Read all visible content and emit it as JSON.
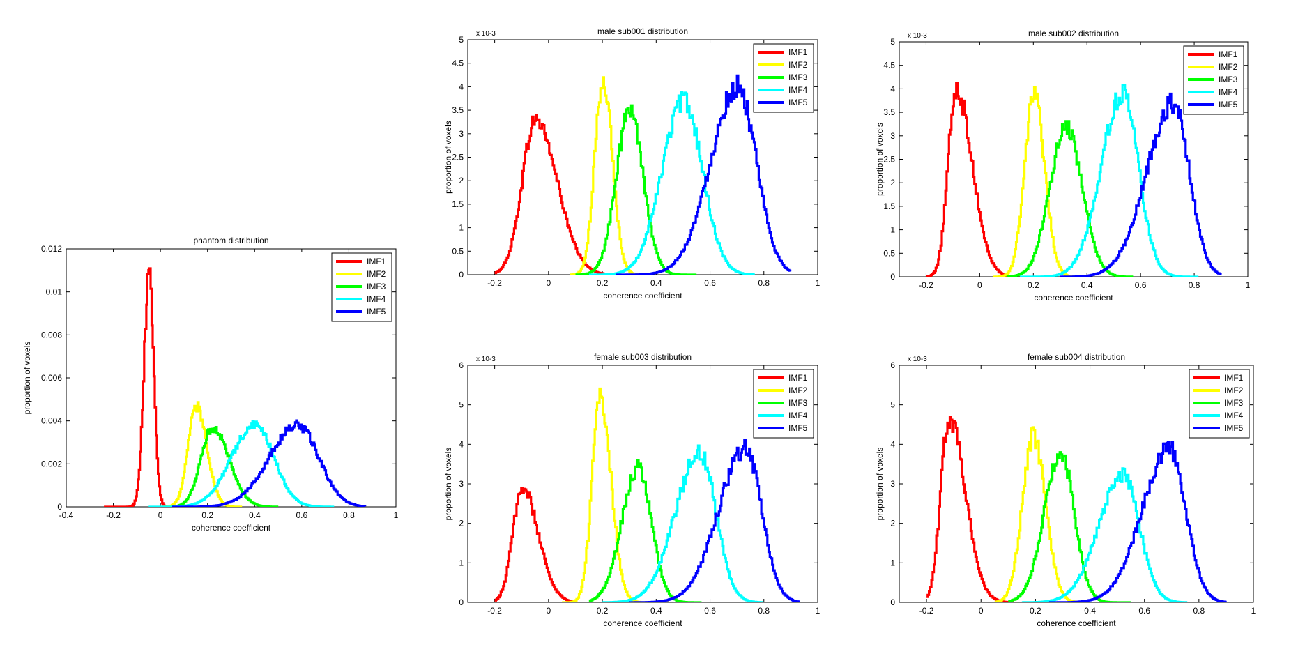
{
  "chart_data": [
    {
      "type": "line",
      "title": "phantom distribution",
      "xlabel": "coherence coefficient",
      "ylabel": "proportion of voxels",
      "xlim": [
        -0.4,
        1
      ],
      "ylim": [
        0,
        0.012
      ],
      "xticks": [
        "-0.4",
        "-0.2",
        "0",
        "0.2",
        "0.4",
        "0.6",
        "0.8",
        "1"
      ],
      "yticks": [
        "0",
        "0.002",
        "0.004",
        "0.006",
        "0.008",
        "0.01",
        "0.012"
      ],
      "exponent_label": "",
      "legend_position": "top-right",
      "series": [
        {
          "name": "IMF1",
          "color": "#ff0000",
          "peak_x": -0.05,
          "peak_y": 0.0107,
          "sigma_left": 0.022,
          "sigma_right": 0.02,
          "x_min": -0.24,
          "x_max": 0.1
        },
        {
          "name": "IMF2",
          "color": "#ffff00",
          "peak_x": 0.15,
          "peak_y": 0.0047,
          "sigma_left": 0.035,
          "sigma_right": 0.045,
          "x_min": 0.0,
          "x_max": 0.35
        },
        {
          "name": "IMF3",
          "color": "#00ff00",
          "peak_x": 0.22,
          "peak_y": 0.0037,
          "sigma_left": 0.05,
          "sigma_right": 0.07,
          "x_min": 0.05,
          "x_max": 0.5
        },
        {
          "name": "IMF4",
          "color": "#00ffff",
          "peak_x": 0.4,
          "peak_y": 0.0038,
          "sigma_left": 0.1,
          "sigma_right": 0.08,
          "x_min": -0.05,
          "x_max": 0.74
        },
        {
          "name": "IMF5",
          "color": "#0000ff",
          "peak_x": 0.58,
          "peak_y": 0.0038,
          "sigma_left": 0.12,
          "sigma_right": 0.09,
          "x_min": 0.05,
          "x_max": 0.87
        }
      ]
    },
    {
      "type": "line",
      "title": "male sub001 distribution",
      "xlabel": "coherence coefficient",
      "ylabel": "proportion of voxels",
      "xlim": [
        -0.3,
        1
      ],
      "ylim": [
        0,
        5
      ],
      "xticks": [
        "-0.2",
        "0",
        "0.2",
        "0.4",
        "0.6",
        "0.8",
        "1"
      ],
      "yticks": [
        "0",
        "0.5",
        "1",
        "1.5",
        "2",
        "2.5",
        "3",
        "3.5",
        "4",
        "4.5",
        "5"
      ],
      "exponent_label": "x 10-3",
      "legend_position": "top-right",
      "series": [
        {
          "name": "IMF1",
          "color": "#ff0000",
          "peak_x": -0.05,
          "peak_y": 3.3,
          "sigma_left": 0.05,
          "sigma_right": 0.08,
          "x_min": -0.2,
          "x_max": 0.25
        },
        {
          "name": "IMF2",
          "color": "#ffff00",
          "peak_x": 0.2,
          "peak_y": 4.2,
          "sigma_left": 0.03,
          "sigma_right": 0.035,
          "x_min": 0.08,
          "x_max": 0.38
        },
        {
          "name": "IMF3",
          "color": "#00ff00",
          "peak_x": 0.3,
          "peak_y": 3.5,
          "sigma_left": 0.05,
          "sigma_right": 0.05,
          "x_min": 0.1,
          "x_max": 0.55
        },
        {
          "name": "IMF4",
          "color": "#00ffff",
          "peak_x": 0.5,
          "peak_y": 3.7,
          "sigma_left": 0.08,
          "sigma_right": 0.07,
          "x_min": 0.15,
          "x_max": 0.77
        },
        {
          "name": "IMF5",
          "color": "#0000ff",
          "peak_x": 0.7,
          "peak_y": 4.0,
          "sigma_left": 0.1,
          "sigma_right": 0.07,
          "x_min": 0.25,
          "x_max": 0.9
        }
      ]
    },
    {
      "type": "line",
      "title": "male sub002 distribution",
      "xlabel": "coherence coefficient",
      "ylabel": "proportion of voxels",
      "xlim": [
        -0.3,
        1
      ],
      "ylim": [
        0,
        5
      ],
      "xticks": [
        "-0.2",
        "0",
        "0.2",
        "0.4",
        "0.6",
        "0.8",
        "1"
      ],
      "yticks": [
        "0",
        "0.5",
        "1",
        "1.5",
        "2",
        "2.5",
        "3",
        "3.5",
        "4",
        "4.5",
        "5"
      ],
      "exponent_label": "x 10-3",
      "legend_position": "top-right",
      "series": [
        {
          "name": "IMF1",
          "color": "#ff0000",
          "peak_x": -0.09,
          "peak_y": 4.0,
          "sigma_left": 0.03,
          "sigma_right": 0.06,
          "x_min": -0.2,
          "x_max": 0.12
        },
        {
          "name": "IMF2",
          "color": "#ffff00",
          "peak_x": 0.2,
          "peak_y": 3.9,
          "sigma_left": 0.035,
          "sigma_right": 0.04,
          "x_min": 0.05,
          "x_max": 0.4
        },
        {
          "name": "IMF3",
          "color": "#00ff00",
          "peak_x": 0.32,
          "peak_y": 3.2,
          "sigma_left": 0.06,
          "sigma_right": 0.06,
          "x_min": 0.1,
          "x_max": 0.57
        },
        {
          "name": "IMF4",
          "color": "#00ffff",
          "peak_x": 0.53,
          "peak_y": 3.9,
          "sigma_left": 0.08,
          "sigma_right": 0.06,
          "x_min": 0.15,
          "x_max": 0.82
        },
        {
          "name": "IMF5",
          "color": "#0000ff",
          "peak_x": 0.72,
          "peak_y": 3.7,
          "sigma_left": 0.1,
          "sigma_right": 0.06,
          "x_min": 0.3,
          "x_max": 0.9
        }
      ]
    },
    {
      "type": "line",
      "title": "female sub003 distribution",
      "xlabel": "coherence coefficient",
      "ylabel": "proportion of voxels",
      "xlim": [
        -0.3,
        1
      ],
      "ylim": [
        0,
        6
      ],
      "xticks": [
        "-0.2",
        "0",
        "0.2",
        "0.4",
        "0.6",
        "0.8",
        "1"
      ],
      "yticks": [
        "0",
        "1",
        "2",
        "3",
        "4",
        "5",
        "6"
      ],
      "exponent_label": "x 10-3",
      "legend_position": "top-right",
      "series": [
        {
          "name": "IMF1",
          "color": "#ff0000",
          "peak_x": -0.1,
          "peak_y": 2.9,
          "sigma_left": 0.035,
          "sigma_right": 0.06,
          "x_min": -0.2,
          "x_max": 0.1
        },
        {
          "name": "IMF2",
          "color": "#ffff00",
          "peak_x": 0.19,
          "peak_y": 5.2,
          "sigma_left": 0.03,
          "sigma_right": 0.04,
          "x_min": 0.05,
          "x_max": 0.45
        },
        {
          "name": "IMF3",
          "color": "#00ff00",
          "peak_x": 0.33,
          "peak_y": 3.4,
          "sigma_left": 0.06,
          "sigma_right": 0.05,
          "x_min": 0.15,
          "x_max": 0.57
        },
        {
          "name": "IMF4",
          "color": "#00ffff",
          "peak_x": 0.56,
          "peak_y": 3.8,
          "sigma_left": 0.09,
          "sigma_right": 0.06,
          "x_min": 0.2,
          "x_max": 0.8
        },
        {
          "name": "IMF5",
          "color": "#0000ff",
          "peak_x": 0.73,
          "peak_y": 3.9,
          "sigma_left": 0.1,
          "sigma_right": 0.06,
          "x_min": 0.3,
          "x_max": 0.93
        }
      ]
    },
    {
      "type": "line",
      "title": "female sub004 distribution",
      "xlabel": "coherence coefficient",
      "ylabel": "proportion of voxels",
      "xlim": [
        -0.3,
        1
      ],
      "ylim": [
        0,
        6
      ],
      "xticks": [
        "-0.2",
        "0",
        "0.2",
        "0.4",
        "0.6",
        "0.8",
        "1"
      ],
      "yticks": [
        "0",
        "1",
        "2",
        "3",
        "4",
        "5",
        "6"
      ],
      "exponent_label": "x 10-3",
      "legend_position": "top-right",
      "series": [
        {
          "name": "IMF1",
          "color": "#ff0000",
          "peak_x": -0.12,
          "peak_y": 4.7,
          "sigma_left": 0.03,
          "sigma_right": 0.06,
          "x_min": -0.2,
          "x_max": 0.12
        },
        {
          "name": "IMF2",
          "color": "#ffff00",
          "peak_x": 0.19,
          "peak_y": 4.2,
          "sigma_left": 0.04,
          "sigma_right": 0.045,
          "x_min": 0.05,
          "x_max": 0.4
        },
        {
          "name": "IMF3",
          "color": "#00ff00",
          "peak_x": 0.29,
          "peak_y": 3.8,
          "sigma_left": 0.06,
          "sigma_right": 0.05,
          "x_min": 0.1,
          "x_max": 0.55
        },
        {
          "name": "IMF4",
          "color": "#00ffff",
          "peak_x": 0.52,
          "peak_y": 3.2,
          "sigma_left": 0.09,
          "sigma_right": 0.06,
          "x_min": 0.15,
          "x_max": 0.76
        },
        {
          "name": "IMF5",
          "color": "#0000ff",
          "peak_x": 0.69,
          "peak_y": 3.9,
          "sigma_left": 0.1,
          "sigma_right": 0.06,
          "x_min": 0.25,
          "x_max": 0.9
        }
      ]
    }
  ]
}
